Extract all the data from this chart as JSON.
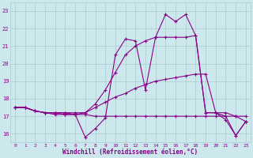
{
  "xlabel": "Windchill (Refroidissement éolien,°C)",
  "bg_color": "#cce8ed",
  "line_color": "#880088",
  "grid_color": "#aacccc",
  "xlim": [
    -0.5,
    23.5
  ],
  "ylim": [
    15.5,
    23.5
  ],
  "xticks": [
    0,
    1,
    2,
    3,
    4,
    5,
    6,
    7,
    8,
    9,
    10,
    11,
    12,
    13,
    14,
    15,
    16,
    17,
    18,
    19,
    20,
    21,
    22,
    23
  ],
  "yticks": [
    16,
    17,
    18,
    19,
    20,
    21,
    22,
    23
  ],
  "series": [
    {
      "x": [
        0,
        1,
        2,
        3,
        4,
        5,
        6,
        7,
        8,
        9,
        10,
        11,
        12,
        13,
        14,
        15,
        16,
        17,
        18,
        19,
        20,
        21,
        22,
        23
      ],
      "y": [
        17.5,
        17.5,
        17.3,
        17.2,
        17.1,
        17.1,
        17.1,
        17.1,
        17.0,
        17.0,
        17.0,
        17.0,
        17.0,
        17.0,
        17.0,
        17.0,
        17.0,
        17.0,
        17.0,
        17.0,
        17.0,
        17.0,
        17.0,
        17.0
      ]
    },
    {
      "x": [
        0,
        1,
        2,
        3,
        4,
        5,
        6,
        7,
        8,
        9,
        10,
        11,
        12,
        13,
        14,
        15,
        16,
        17,
        18,
        19,
        20,
        21,
        22,
        23
      ],
      "y": [
        17.5,
        17.5,
        17.3,
        17.2,
        17.2,
        17.2,
        17.2,
        17.2,
        17.5,
        17.8,
        18.1,
        18.3,
        18.6,
        18.8,
        19.0,
        19.1,
        19.2,
        19.3,
        19.4,
        19.4,
        17.2,
        17.2,
        17.0,
        16.7
      ]
    },
    {
      "x": [
        0,
        1,
        2,
        3,
        4,
        5,
        6,
        7,
        8,
        9,
        10,
        11,
        12,
        13,
        14,
        15,
        16,
        17,
        18,
        19,
        20,
        21,
        22,
        23
      ],
      "y": [
        17.5,
        17.5,
        17.3,
        17.2,
        17.2,
        17.2,
        17.1,
        17.2,
        17.7,
        18.5,
        19.5,
        20.5,
        21.0,
        21.3,
        21.5,
        21.5,
        21.5,
        21.5,
        21.6,
        17.2,
        17.2,
        16.8,
        15.9,
        16.7
      ]
    },
    {
      "x": [
        0,
        1,
        2,
        3,
        4,
        5,
        6,
        7,
        8,
        9,
        10,
        11,
        12,
        13,
        14,
        15,
        16,
        17,
        18,
        19,
        20,
        21,
        22,
        23
      ],
      "y": [
        17.5,
        17.5,
        17.3,
        17.2,
        17.2,
        17.1,
        17.1,
        15.8,
        16.3,
        16.9,
        20.5,
        21.4,
        21.3,
        18.5,
        21.5,
        22.8,
        22.4,
        22.8,
        21.6,
        17.2,
        17.2,
        17.0,
        15.9,
        16.7
      ]
    }
  ]
}
